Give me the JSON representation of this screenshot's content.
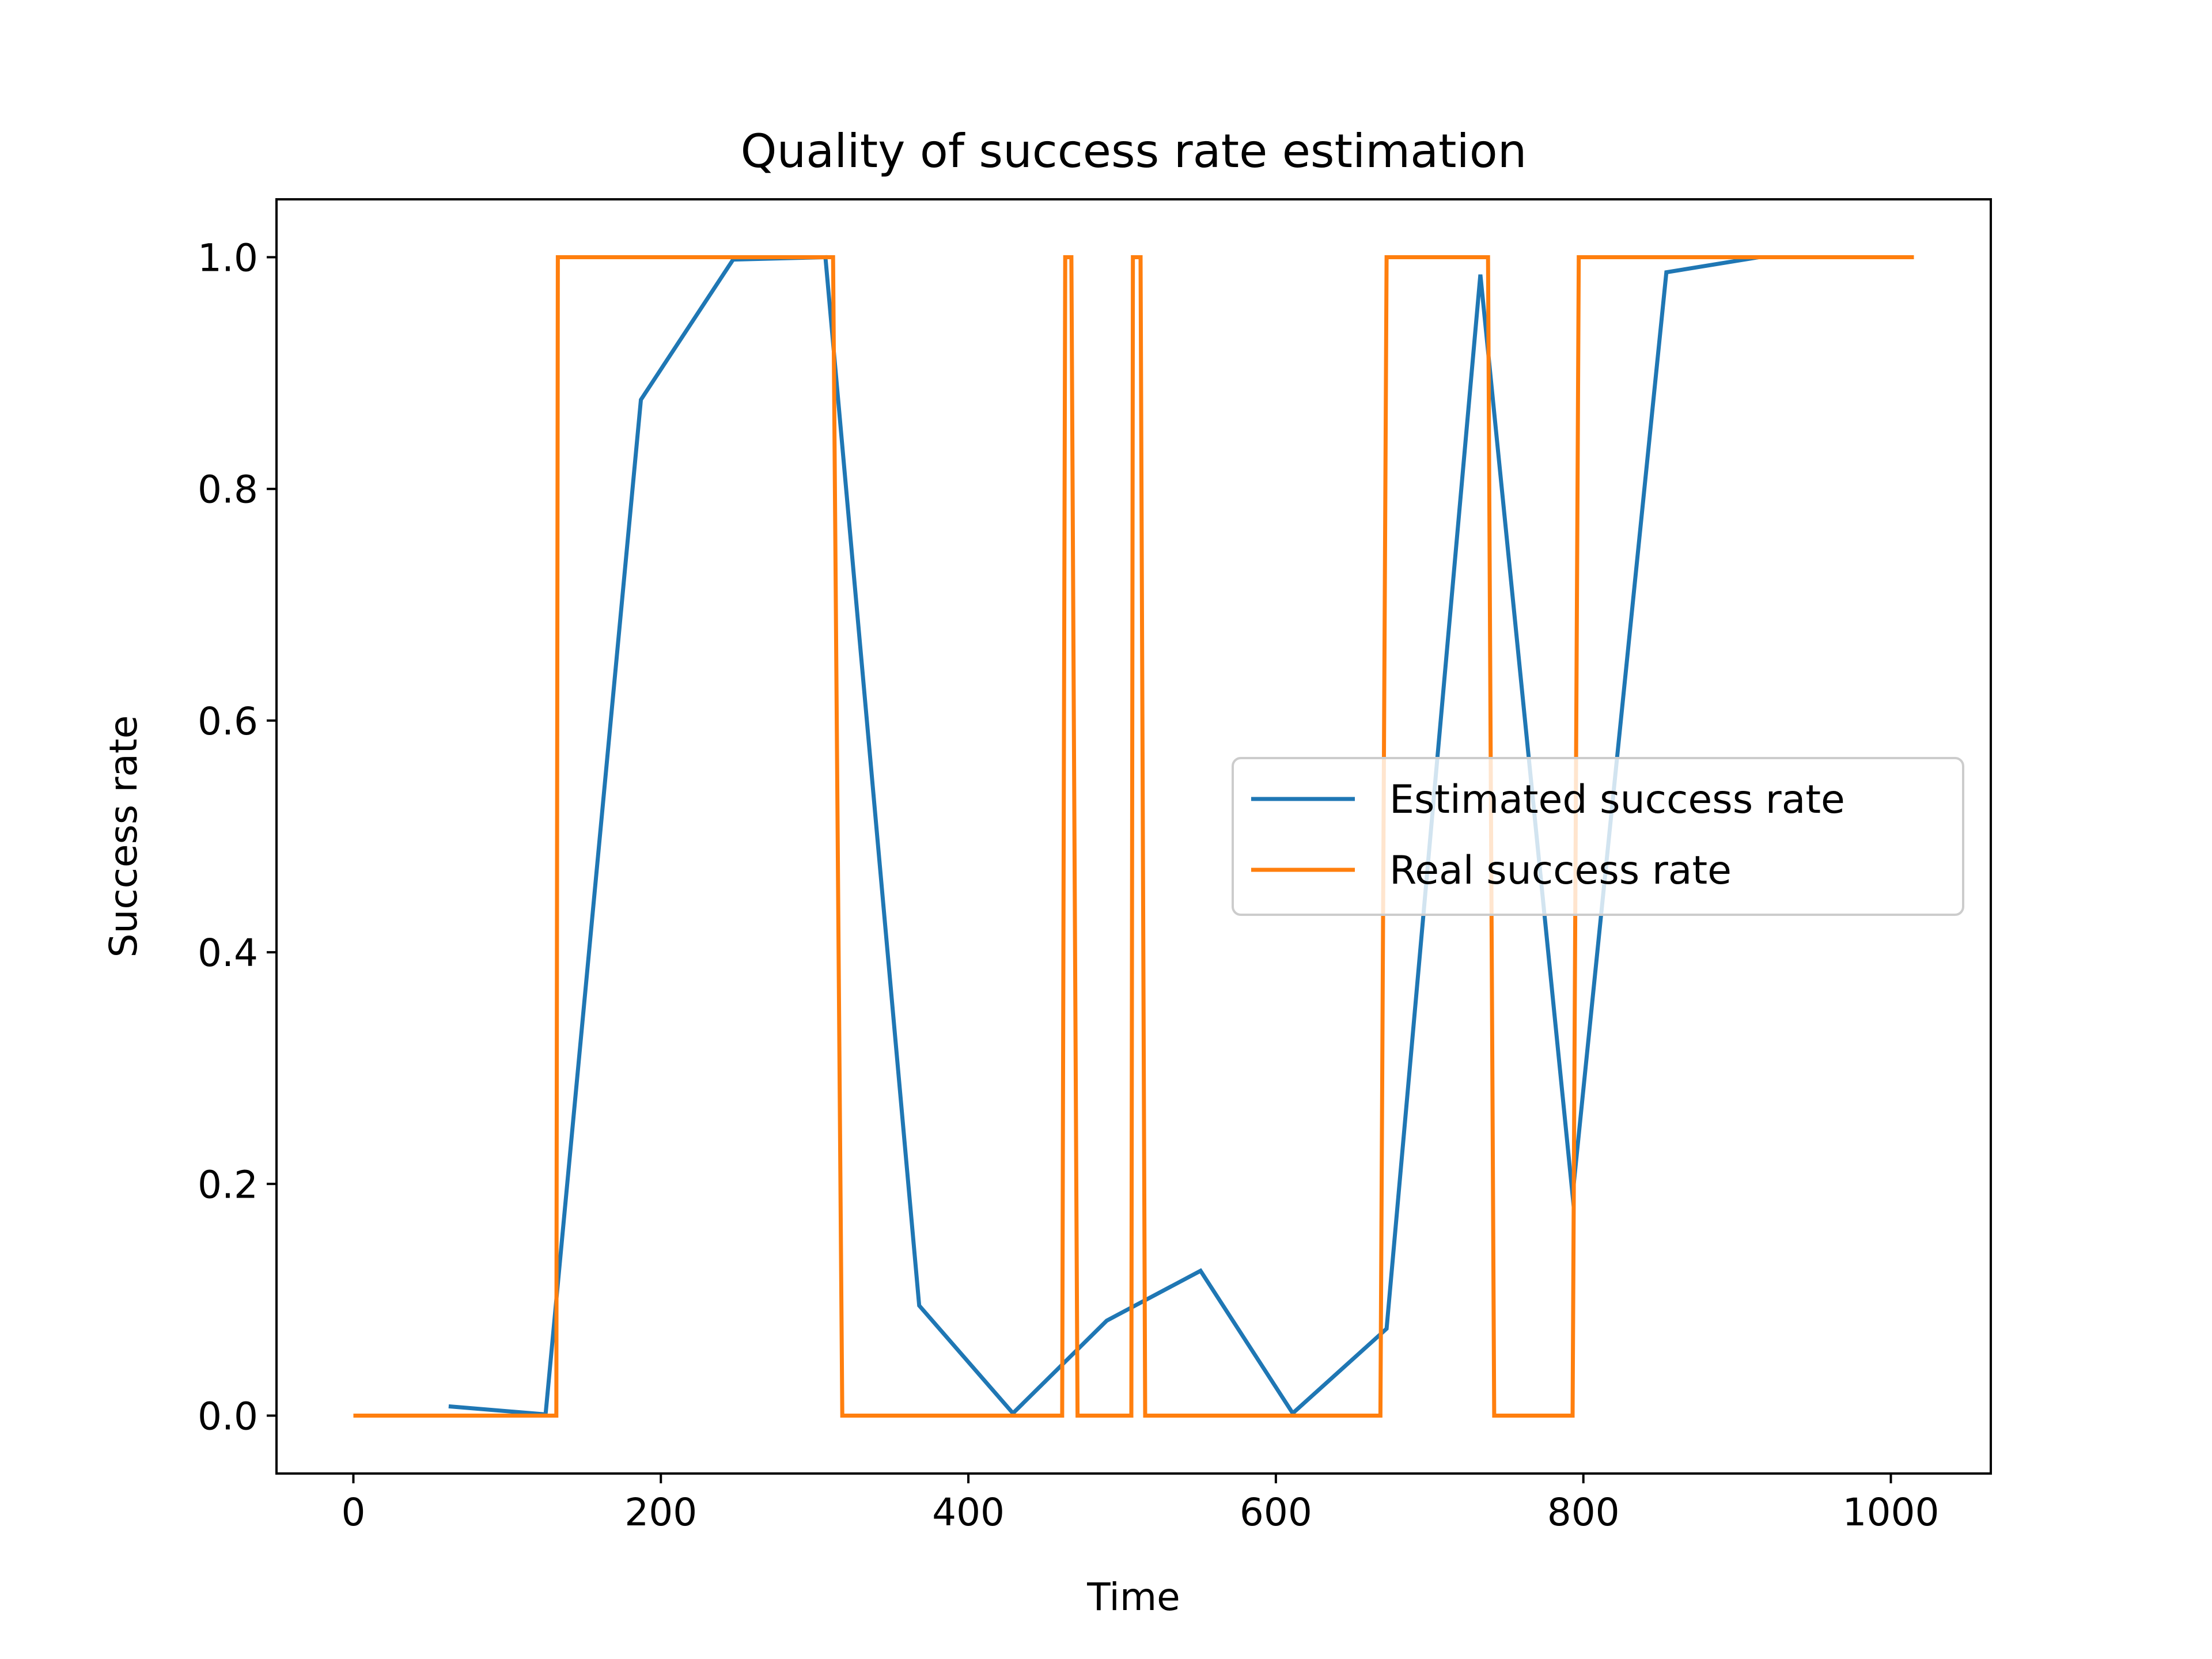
{
  "chart_data": {
    "type": "line",
    "title": "Quality of success rate estimation",
    "xlabel": "Time",
    "ylabel": "Success rate",
    "xlim": [
      -50,
      1065
    ],
    "ylim": [
      -0.05,
      1.05
    ],
    "xticks": [
      0,
      200,
      400,
      600,
      800,
      1000
    ],
    "yticks": [
      0.0,
      0.2,
      0.4,
      0.6,
      0.8,
      1.0
    ],
    "xtick_labels": [
      "0",
      "200",
      "400",
      "600",
      "800",
      "1000"
    ],
    "ytick_labels": [
      "0.0",
      "0.2",
      "0.4",
      "0.6",
      "0.8",
      "1.0"
    ],
    "grid": false,
    "legend": {
      "location": "center-right"
    },
    "series": [
      {
        "name": "Estimated success rate",
        "color": "#1f77b4",
        "x": [
          62,
          125,
          187,
          247,
          307,
          368,
          429,
          490,
          551,
          611,
          672,
          733,
          793,
          854,
          914,
          1015
        ],
        "y": [
          0.008,
          0.001,
          0.877,
          0.998,
          1.0,
          0.095,
          0.002,
          0.082,
          0.125,
          0.002,
          0.075,
          0.985,
          0.19,
          0.987,
          1.0,
          1.0
        ]
      },
      {
        "name": "Real success rate",
        "color": "#ff7f0e",
        "x": [
          0,
          132,
          133,
          312,
          318,
          461,
          463,
          467,
          471,
          506,
          507,
          512,
          515,
          668,
          672,
          738,
          742,
          793,
          797,
          1015
        ],
        "y": [
          0,
          0,
          1,
          1,
          0,
          0,
          1,
          1,
          0,
          0,
          1,
          1,
          0,
          0,
          1,
          1,
          0,
          0,
          1,
          1
        ]
      }
    ]
  }
}
